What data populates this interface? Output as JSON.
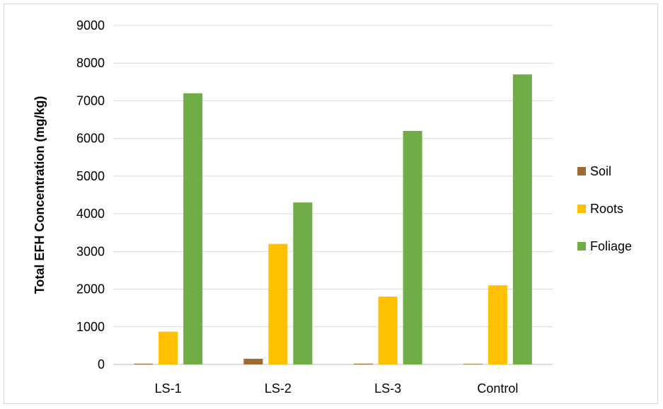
{
  "chart_data": {
    "type": "bar",
    "title": "",
    "xlabel": "",
    "ylabel": "Total EFH Concentration (mg/kg)",
    "ylim": [
      0,
      9000
    ],
    "yticks": [
      0,
      1000,
      2000,
      3000,
      4000,
      5000,
      6000,
      7000,
      8000,
      9000
    ],
    "categories": [
      "LS-1",
      "LS-2",
      "LS-3",
      "Control"
    ],
    "series": [
      {
        "name": "Soil",
        "color": "#9c6a32",
        "values": [
          20,
          150,
          20,
          10
        ]
      },
      {
        "name": "Roots",
        "color": "#ffc000",
        "values": [
          870,
          3200,
          1800,
          2100
        ]
      },
      {
        "name": "Foliage",
        "color": "#70ad47",
        "values": [
          7200,
          4300,
          6200,
          7700
        ]
      }
    ],
    "grid": true,
    "legend": "right"
  }
}
